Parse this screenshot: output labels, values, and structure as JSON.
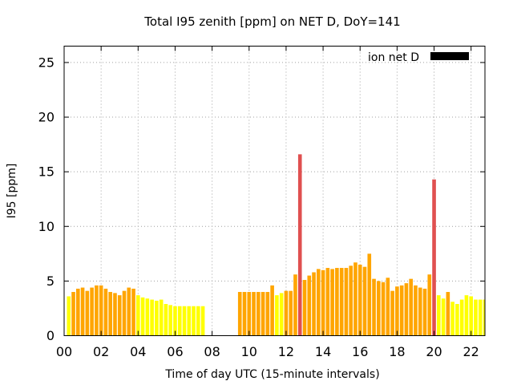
{
  "chart_data": {
    "type": "bar",
    "title": "Total I95 zenith [ppm] on NET D, DoY=141",
    "xlabel": "Time of day UTC (15-minute intervals)",
    "ylabel": "I95 [ppm]",
    "xlim": [
      0,
      22.75
    ],
    "ylim": [
      0,
      26.5
    ],
    "x_ticks": [
      "00",
      "02",
      "04",
      "06",
      "08",
      "10",
      "12",
      "14",
      "16",
      "18",
      "20",
      "22"
    ],
    "y_ticks": [
      "0",
      "5",
      "10",
      "15",
      "20",
      "25"
    ],
    "grid": true,
    "legend": {
      "position": "top-right",
      "entries": [
        "ion net D"
      ],
      "swatch_color": "#000000"
    },
    "bar_width_hours": 0.2,
    "colors": {
      "yellow": "#ffff00",
      "orange": "#ffa500",
      "red": "#e05050"
    },
    "bars": [
      {
        "x": 0.25,
        "y": 3.6,
        "c": "yellow"
      },
      {
        "x": 0.5,
        "y": 4.0,
        "c": "orange"
      },
      {
        "x": 0.75,
        "y": 4.3,
        "c": "orange"
      },
      {
        "x": 1.0,
        "y": 4.4,
        "c": "orange"
      },
      {
        "x": 1.25,
        "y": 4.1,
        "c": "orange"
      },
      {
        "x": 1.5,
        "y": 4.4,
        "c": "orange"
      },
      {
        "x": 1.75,
        "y": 4.6,
        "c": "orange"
      },
      {
        "x": 2.0,
        "y": 4.6,
        "c": "orange"
      },
      {
        "x": 2.25,
        "y": 4.3,
        "c": "orange"
      },
      {
        "x": 2.5,
        "y": 4.0,
        "c": "orange"
      },
      {
        "x": 2.75,
        "y": 3.9,
        "c": "orange"
      },
      {
        "x": 3.0,
        "y": 3.7,
        "c": "orange"
      },
      {
        "x": 3.25,
        "y": 4.1,
        "c": "orange"
      },
      {
        "x": 3.5,
        "y": 4.4,
        "c": "orange"
      },
      {
        "x": 3.75,
        "y": 4.3,
        "c": "orange"
      },
      {
        "x": 4.0,
        "y": 3.7,
        "c": "yellow"
      },
      {
        "x": 4.25,
        "y": 3.5,
        "c": "yellow"
      },
      {
        "x": 4.5,
        "y": 3.4,
        "c": "yellow"
      },
      {
        "x": 4.75,
        "y": 3.3,
        "c": "yellow"
      },
      {
        "x": 5.0,
        "y": 3.2,
        "c": "yellow"
      },
      {
        "x": 5.25,
        "y": 3.3,
        "c": "yellow"
      },
      {
        "x": 5.5,
        "y": 2.9,
        "c": "yellow"
      },
      {
        "x": 5.75,
        "y": 2.8,
        "c": "yellow"
      },
      {
        "x": 6.0,
        "y": 2.7,
        "c": "yellow"
      },
      {
        "x": 6.25,
        "y": 2.7,
        "c": "yellow"
      },
      {
        "x": 6.5,
        "y": 2.7,
        "c": "yellow"
      },
      {
        "x": 6.75,
        "y": 2.7,
        "c": "yellow"
      },
      {
        "x": 7.0,
        "y": 2.7,
        "c": "yellow"
      },
      {
        "x": 7.25,
        "y": 2.7,
        "c": "yellow"
      },
      {
        "x": 7.5,
        "y": 2.7,
        "c": "yellow"
      },
      {
        "x": 9.5,
        "y": 4.0,
        "c": "orange"
      },
      {
        "x": 9.75,
        "y": 4.0,
        "c": "orange"
      },
      {
        "x": 10.0,
        "y": 4.0,
        "c": "orange"
      },
      {
        "x": 10.25,
        "y": 4.0,
        "c": "orange"
      },
      {
        "x": 10.5,
        "y": 4.0,
        "c": "orange"
      },
      {
        "x": 10.75,
        "y": 4.0,
        "c": "orange"
      },
      {
        "x": 11.0,
        "y": 4.0,
        "c": "orange"
      },
      {
        "x": 11.25,
        "y": 4.6,
        "c": "orange"
      },
      {
        "x": 11.5,
        "y": 3.7,
        "c": "yellow"
      },
      {
        "x": 11.75,
        "y": 3.9,
        "c": "yellow"
      },
      {
        "x": 12.0,
        "y": 4.1,
        "c": "orange"
      },
      {
        "x": 12.25,
        "y": 4.1,
        "c": "orange"
      },
      {
        "x": 12.5,
        "y": 5.6,
        "c": "orange"
      },
      {
        "x": 12.75,
        "y": 16.6,
        "c": "red"
      },
      {
        "x": 13.0,
        "y": 5.1,
        "c": "orange"
      },
      {
        "x": 13.25,
        "y": 5.5,
        "c": "orange"
      },
      {
        "x": 13.5,
        "y": 5.8,
        "c": "orange"
      },
      {
        "x": 13.75,
        "y": 6.1,
        "c": "orange"
      },
      {
        "x": 14.0,
        "y": 6.0,
        "c": "orange"
      },
      {
        "x": 14.25,
        "y": 6.2,
        "c": "orange"
      },
      {
        "x": 14.5,
        "y": 6.1,
        "c": "orange"
      },
      {
        "x": 14.75,
        "y": 6.2,
        "c": "orange"
      },
      {
        "x": 15.0,
        "y": 6.2,
        "c": "orange"
      },
      {
        "x": 15.25,
        "y": 6.2,
        "c": "orange"
      },
      {
        "x": 15.5,
        "y": 6.4,
        "c": "orange"
      },
      {
        "x": 15.75,
        "y": 6.7,
        "c": "orange"
      },
      {
        "x": 16.0,
        "y": 6.5,
        "c": "orange"
      },
      {
        "x": 16.25,
        "y": 6.3,
        "c": "orange"
      },
      {
        "x": 16.5,
        "y": 7.5,
        "c": "orange"
      },
      {
        "x": 16.75,
        "y": 5.2,
        "c": "orange"
      },
      {
        "x": 17.0,
        "y": 5.0,
        "c": "orange"
      },
      {
        "x": 17.25,
        "y": 4.9,
        "c": "orange"
      },
      {
        "x": 17.5,
        "y": 5.3,
        "c": "orange"
      },
      {
        "x": 17.75,
        "y": 4.1,
        "c": "orange"
      },
      {
        "x": 18.0,
        "y": 4.5,
        "c": "orange"
      },
      {
        "x": 18.25,
        "y": 4.6,
        "c": "orange"
      },
      {
        "x": 18.5,
        "y": 4.8,
        "c": "orange"
      },
      {
        "x": 18.75,
        "y": 5.2,
        "c": "orange"
      },
      {
        "x": 19.0,
        "y": 4.6,
        "c": "orange"
      },
      {
        "x": 19.25,
        "y": 4.4,
        "c": "orange"
      },
      {
        "x": 19.5,
        "y": 4.3,
        "c": "orange"
      },
      {
        "x": 19.75,
        "y": 5.6,
        "c": "orange"
      },
      {
        "x": 20.0,
        "y": 14.3,
        "c": "red"
      },
      {
        "x": 20.25,
        "y": 3.7,
        "c": "yellow"
      },
      {
        "x": 20.5,
        "y": 3.4,
        "c": "yellow"
      },
      {
        "x": 20.75,
        "y": 4.0,
        "c": "orange"
      },
      {
        "x": 21.0,
        "y": 3.1,
        "c": "yellow"
      },
      {
        "x": 21.25,
        "y": 2.9,
        "c": "yellow"
      },
      {
        "x": 21.5,
        "y": 3.3,
        "c": "yellow"
      },
      {
        "x": 21.75,
        "y": 3.7,
        "c": "yellow"
      },
      {
        "x": 22.0,
        "y": 3.6,
        "c": "yellow"
      },
      {
        "x": 22.25,
        "y": 3.3,
        "c": "yellow"
      },
      {
        "x": 22.5,
        "y": 3.3,
        "c": "yellow"
      },
      {
        "x": 22.75,
        "y": 3.3,
        "c": "yellow"
      }
    ]
  }
}
